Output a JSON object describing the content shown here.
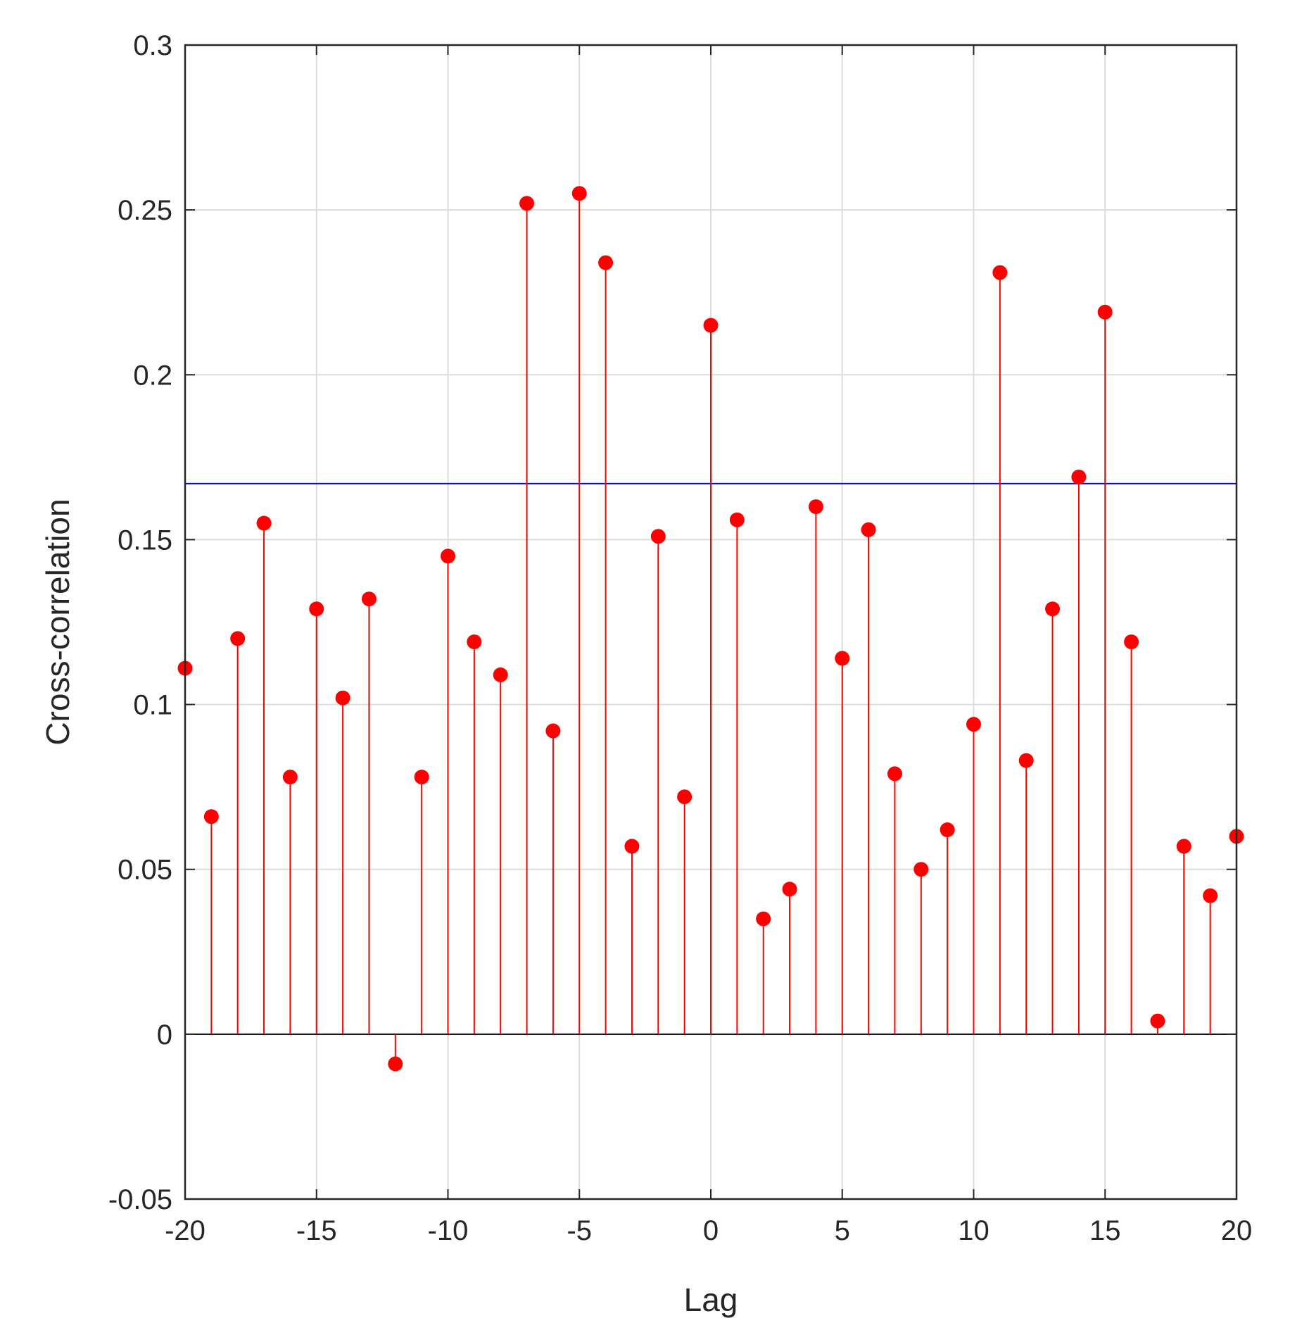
{
  "chart_data": {
    "type": "stem",
    "xlabel": "Lag",
    "ylabel": "Cross-correlation",
    "xlim": [
      -20,
      20
    ],
    "ylim": [
      -0.05,
      0.3
    ],
    "xticks": [
      -20,
      -15,
      -10,
      -5,
      0,
      5,
      10,
      15,
      20
    ],
    "xtick_labels": [
      "-20",
      "-15",
      "-10",
      "-5",
      "0",
      "5",
      "10",
      "15",
      "20"
    ],
    "yticks": [
      -0.05,
      0,
      0.05,
      0.1,
      0.15,
      0.2,
      0.25,
      0.3
    ],
    "ytick_labels": [
      "-0.05",
      "0",
      "0.05",
      "0.1",
      "0.15",
      "0.2",
      "0.25",
      "0.3"
    ],
    "grid": true,
    "x": [
      -20,
      -19,
      -18,
      -17,
      -16,
      -15,
      -14,
      -13,
      -12,
      -11,
      -10,
      -9,
      -8,
      -7,
      -6,
      -5,
      -4,
      -3,
      -2,
      -1,
      0,
      1,
      2,
      3,
      4,
      5,
      6,
      7,
      8,
      9,
      10,
      11,
      12,
      13,
      14,
      15,
      16,
      17,
      18,
      19,
      20
    ],
    "values": [
      0.111,
      0.066,
      0.12,
      0.155,
      0.078,
      0.129,
      0.102,
      0.132,
      -0.009,
      0.078,
      0.145,
      0.119,
      0.109,
      0.252,
      0.092,
      0.255,
      0.234,
      0.057,
      0.151,
      0.072,
      0.215,
      0.156,
      0.035,
      0.044,
      0.16,
      0.114,
      0.153,
      0.079,
      0.05,
      0.062,
      0.094,
      0.231,
      0.083,
      0.129,
      0.169,
      0.219,
      0.119,
      0.004,
      0.057,
      0.042,
      0.06
    ],
    "threshold": 0.167,
    "colors": {
      "stem": "#ff0000",
      "threshold": "#0000ff",
      "baseline": "#000000",
      "grid": "#dcdcdc",
      "axis": "#262626"
    }
  }
}
